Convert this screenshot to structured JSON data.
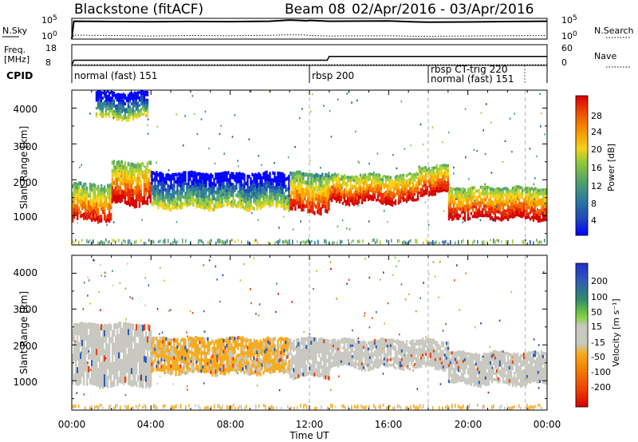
{
  "header": {
    "station": "Blackstone (fitACF)",
    "beam": "Beam 08",
    "date_range": "02/Apr/2016 - 03/Apr/2016"
  },
  "nsky_panel": {
    "left_label": "N.Sky",
    "left_ticks": [
      "10^5",
      "10^0"
    ],
    "right_ticks": [
      "10^5",
      "10^0"
    ],
    "right_label": "N.Search"
  },
  "freq_panel": {
    "left_label_line1": "Freq.",
    "left_label_line2": "[MHz]",
    "left_ticks": [
      "18",
      "8"
    ],
    "right_ticks": [
      "60",
      "0"
    ],
    "right_label": "Nave"
  },
  "cpid_panel": {
    "label": "CPID",
    "segments": [
      {
        "name": "normal (fast) 151",
        "start_hour": 0.0
      },
      {
        "name": "rbsp 200",
        "start_hour": 12.0
      },
      {
        "name": "rbsp CT-trig 220",
        "start_hour": 18.0
      },
      {
        "name": "normal (fast) 151",
        "start_hour": 18.0
      }
    ]
  },
  "x_axis": {
    "label": "Time UT",
    "ticks": [
      "00:00",
      "04:00",
      "08:00",
      "12:00",
      "16:00",
      "20:00",
      "00:00"
    ]
  },
  "power_panel": {
    "ylabel": "Slant Range [km]",
    "yticks": [
      "4000",
      "3000",
      "2000",
      "1000"
    ],
    "colorbar_label": "Power [dB]",
    "colorbar_ticks": [
      "28",
      "24",
      "20",
      "16",
      "12",
      "8",
      "4"
    ]
  },
  "velocity_panel": {
    "ylabel": "Slant Range [km]",
    "yticks": [
      "4000",
      "3000",
      "2000",
      "1000"
    ],
    "colorbar_label": "Velocity [m s⁻¹]",
    "colorbar_ticks": [
      "200",
      "100",
      "50",
      "15",
      "-15",
      "-50",
      "-100",
      "-200"
    ]
  },
  "chart_data": [
    {
      "type": "line",
      "title": "Blackstone (fitACF) Beam 08 02/Apr/2016 - 03/Apr/2016",
      "xlabel": "Time UT",
      "ylabel": "N.Sky",
      "y_scale": "log",
      "xlim": [
        0,
        24
      ],
      "x": [
        0,
        0.1,
        2,
        4,
        6,
        8,
        10,
        11,
        11.9,
        12,
        13,
        16,
        17.5,
        18,
        20,
        22,
        24
      ],
      "series": [
        {
          "name": "N.Sky",
          "values": [
            1,
            30000,
            25000,
            22000,
            26000,
            24000,
            30000,
            60000,
            40000,
            50000,
            30000,
            35000,
            20000,
            18000,
            20000,
            25000,
            30000
          ]
        },
        {
          "name": "N.Search",
          "values": [
            1,
            10,
            8,
            6,
            8,
            7,
            9,
            12,
            10,
            8,
            6,
            7,
            5,
            5,
            6,
            7,
            8
          ]
        }
      ]
    },
    {
      "type": "line",
      "ylabel": "Freq. [MHz]",
      "xlim": [
        0,
        24
      ],
      "x": [
        0,
        0.1,
        12.9,
        13.0,
        24
      ],
      "series": [
        {
          "name": "Freq.",
          "values": [
            8,
            10.5,
            10.5,
            12.3,
            12.3
          ]
        },
        {
          "name": "Nave",
          "values": [
            0,
            2,
            2,
            2,
            2
          ]
        }
      ]
    },
    {
      "type": "heatmap",
      "ylabel": "Slant Range [km]",
      "colorbar_label": "Power [dB]",
      "xlim": [
        0,
        24
      ],
      "ylim": [
        180,
        4500
      ],
      "bands": [
        {
          "t_start": 0.0,
          "t_end": 2.0,
          "r_low": 850,
          "r_high": 1900,
          "power_db": 20
        },
        {
          "t_start": 2.0,
          "t_end": 4.0,
          "r_low": 1300,
          "r_high": 2500,
          "power_db": 22
        },
        {
          "t_start": 4.0,
          "t_end": 11.0,
          "r_low": 1200,
          "r_high": 2200,
          "power_db": 8
        },
        {
          "t_start": 1.2,
          "t_end": 3.8,
          "r_low": 3700,
          "r_high": 4450,
          "power_db": 8
        },
        {
          "t_start": 11.0,
          "t_end": 13.0,
          "r_low": 1100,
          "r_high": 2200,
          "power_db": 20
        },
        {
          "t_start": 13.0,
          "t_end": 17.5,
          "r_low": 1350,
          "r_high": 2150,
          "power_db": 22
        },
        {
          "t_start": 17.5,
          "t_end": 19.0,
          "r_low": 1600,
          "r_high": 2400,
          "power_db": 22
        },
        {
          "t_start": 19.0,
          "t_end": 24.0,
          "r_low": 900,
          "r_high": 1800,
          "power_db": 22
        }
      ]
    },
    {
      "type": "heatmap",
      "ylabel": "Slant Range [km]",
      "colorbar_label": "Velocity [m s⁻¹]",
      "xlim": [
        0,
        24
      ],
      "ylim": [
        180,
        4500
      ],
      "bands": [
        {
          "t_start": 0.0,
          "t_end": 4.0,
          "r_low": 850,
          "r_high": 2600,
          "velocity_ms": 0
        },
        {
          "t_start": 4.0,
          "t_end": 11.0,
          "r_low": 1200,
          "r_high": 2200,
          "velocity_ms": -30
        },
        {
          "t_start": 11.0,
          "t_end": 13.0,
          "r_low": 1100,
          "r_high": 2200,
          "velocity_ms": 0
        },
        {
          "t_start": 13.0,
          "t_end": 19.0,
          "r_low": 1350,
          "r_high": 2150,
          "velocity_ms": 0
        },
        {
          "t_start": 19.0,
          "t_end": 24.0,
          "r_low": 900,
          "r_high": 1800,
          "velocity_ms": 0
        }
      ]
    }
  ],
  "colors": {
    "power_scale": [
      "#0000ff",
      "#1a4fb0",
      "#2f7d9a",
      "#58a870",
      "#9fce3c",
      "#f5d21a",
      "#f9a800",
      "#f26a00",
      "#e82a00",
      "#d60000"
    ],
    "velocity_scale": [
      "#1f2ec8",
      "#2f5cb8",
      "#2f8a6c",
      "#7fd23a",
      "#c8c8c0",
      "#f6aa1c",
      "#f27b00",
      "#ec3f00",
      "#d80000"
    ]
  }
}
